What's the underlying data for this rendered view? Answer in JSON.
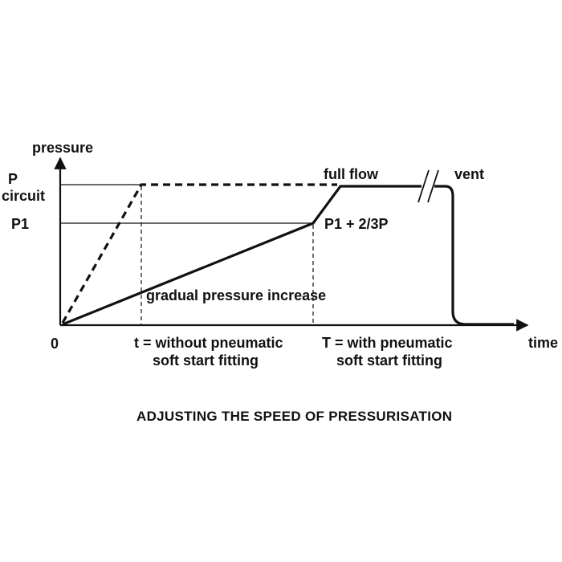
{
  "labels": {
    "y_axis": "pressure",
    "x_axis": "time",
    "p_circuit_line1": "P",
    "p_circuit_line2": "circuit",
    "p1": "P1",
    "origin": "0",
    "full_flow": "full flow",
    "vent": "vent",
    "p1_plus": "P1 + 2/3P",
    "gradual": "gradual pressure increase",
    "t_line1": "t = without pneumatic",
    "t_line2": "soft start fitting",
    "T_line1": "T = with pneumatic",
    "T_line2": "soft start fitting"
  },
  "caption": "ADJUSTING THE SPEED OF PRESSURISATION",
  "colors": {
    "ink": "#111111",
    "background": "#ffffff"
  }
}
